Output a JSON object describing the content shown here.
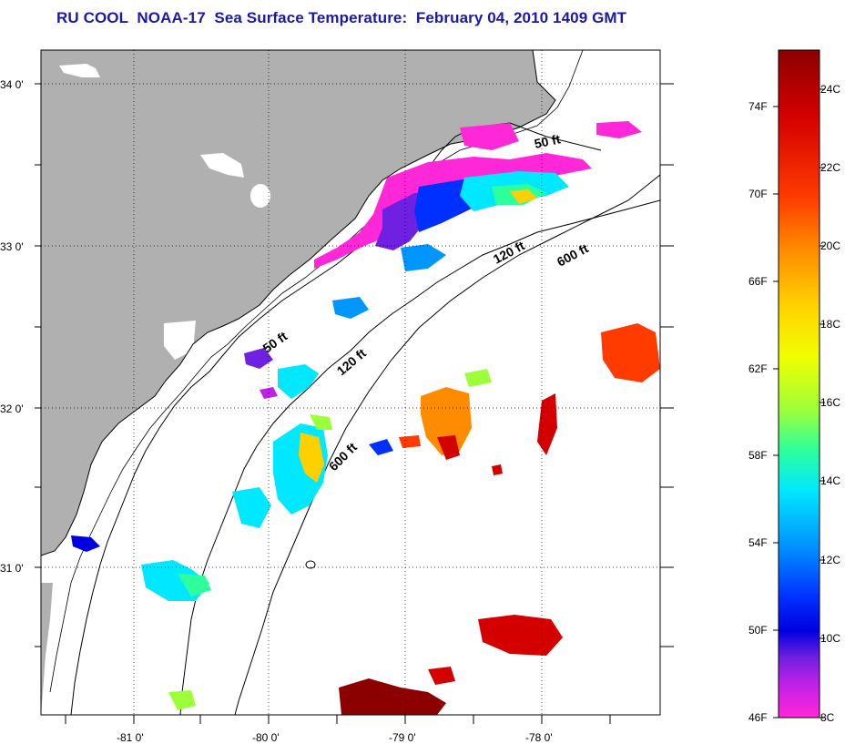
{
  "title": "RU COOL  NOAA-17  Sea Surface Temperature:  February 04, 2010 1409 GMT",
  "map": {
    "lat_labels": [
      "34 0'",
      "33 0'",
      "32 0'",
      "31 0'"
    ],
    "lon_labels": [
      "-81 0'",
      "-80 0'",
      "-79 0'",
      "-78 0'"
    ],
    "contour_labels": [
      "50 ft",
      "120 ft",
      "600 ft",
      "50 ft",
      "120 ft",
      "600 ft"
    ],
    "land_color": "#b0b0b0",
    "ocean_color": "#ffffff"
  },
  "colorbar": {
    "fahrenheit_labels": [
      "74F",
      "70F",
      "66F",
      "62F",
      "58F",
      "54F",
      "50F",
      "46F"
    ],
    "celsius_labels": [
      "24C",
      "22C",
      "20C",
      "18C",
      "16C",
      "14C",
      "12C",
      "10C",
      "8C"
    ],
    "colors": [
      "#8b0000",
      "#d40000",
      "#ff3b00",
      "#ff8c00",
      "#ffd000",
      "#f0ff00",
      "#9cff3a",
      "#2cff9c",
      "#00e8ff",
      "#0096ff",
      "#0030ff",
      "#0000e0",
      "#7020e0",
      "#c020e8",
      "#ff28d8"
    ]
  }
}
